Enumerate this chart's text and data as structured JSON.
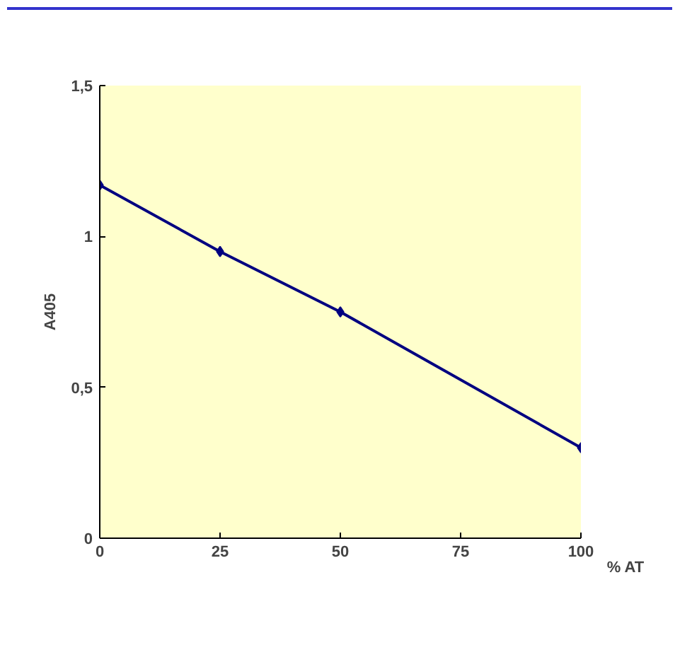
{
  "chart_data": {
    "type": "line",
    "xlabel": "% AT",
    "ylabel": "A405",
    "x": [
      0,
      25,
      50,
      100
    ],
    "series": [
      {
        "color": "#000080",
        "values": [
          1.17,
          0.95,
          0.75,
          0.3
        ]
      }
    ],
    "xlim": [
      0,
      100
    ],
    "xticks": [
      0,
      25,
      50,
      75,
      100
    ],
    "ylim": [
      0,
      1.5
    ],
    "yticks": [
      0,
      {
        "value": 0.5,
        "label": "0,5"
      },
      1,
      {
        "value": 1.5,
        "label": "1,5"
      }
    ],
    "grid": false,
    "marker": "diamond",
    "line_style": "solid"
  }
}
